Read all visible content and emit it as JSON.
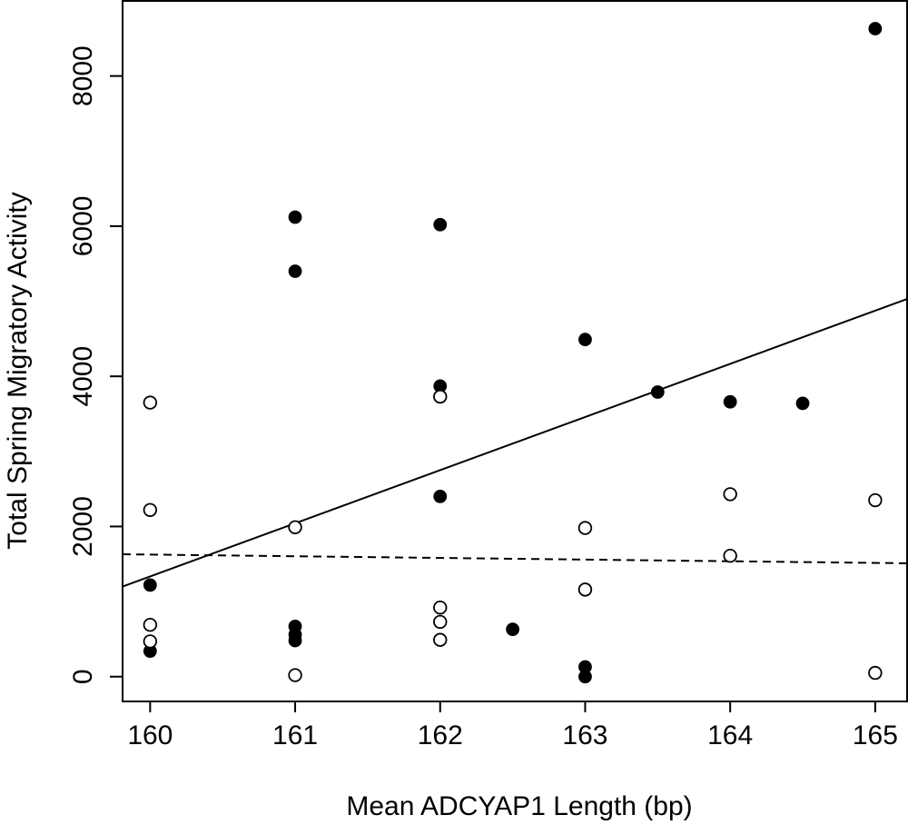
{
  "chart_data": {
    "type": "scatter",
    "title": "",
    "xlabel": "Mean ADCYAP1 Length (bp)",
    "ylabel": "Total Spring Migratory Activity",
    "xlim": [
      159.81,
      165.22
    ],
    "ylim": [
      -330,
      9000
    ],
    "x_ticks": [
      160,
      161,
      162,
      163,
      164,
      165
    ],
    "y_ticks": [
      0,
      2000,
      4000,
      6000,
      8000
    ],
    "grid": false,
    "legend": "none",
    "series": [
      {
        "marker": "filled-circle",
        "color": "#000000",
        "points": [
          [
            160,
            1220
          ],
          [
            160,
            340
          ],
          [
            161,
            6120
          ],
          [
            161,
            5400
          ],
          [
            161,
            670
          ],
          [
            161,
            560
          ],
          [
            161,
            480
          ],
          [
            162,
            6020
          ],
          [
            162,
            3870
          ],
          [
            162,
            2400
          ],
          [
            162.5,
            630
          ],
          [
            163,
            4490
          ],
          [
            163,
            130
          ],
          [
            163,
            0
          ],
          [
            163.5,
            3790
          ],
          [
            164,
            3660
          ],
          [
            164.5,
            3640
          ],
          [
            165,
            8630
          ]
        ]
      },
      {
        "marker": "open-circle",
        "color": "#000000",
        "points": [
          [
            160,
            3650
          ],
          [
            160,
            2220
          ],
          [
            160,
            690
          ],
          [
            160,
            470
          ],
          [
            161,
            1990
          ],
          [
            161,
            20
          ],
          [
            162,
            3730
          ],
          [
            162,
            920
          ],
          [
            162,
            730
          ],
          [
            162,
            490
          ],
          [
            163,
            1980
          ],
          [
            163,
            1160
          ],
          [
            164,
            2430
          ],
          [
            164,
            1610
          ],
          [
            165,
            2350
          ],
          [
            165,
            50
          ]
        ]
      }
    ],
    "trend_lines": [
      {
        "style": "solid",
        "color": "#000000",
        "x": [
          159.81,
          165.22
        ],
        "y": [
          1200,
          5030
        ]
      },
      {
        "style": "dashed",
        "color": "#000000",
        "x": [
          159.81,
          165.22
        ],
        "y": [
          1630,
          1510
        ]
      }
    ]
  }
}
